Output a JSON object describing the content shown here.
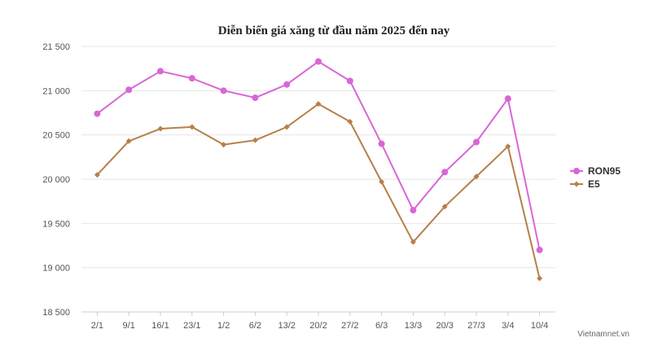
{
  "chart_data": {
    "type": "line",
    "title": "Diễn biến giá xăng từ đầu năm 2025 đến nay",
    "xlabel": "",
    "ylabel": "",
    "categories": [
      "2/1",
      "9/1",
      "16/1",
      "23/1",
      "1/2",
      "6/2",
      "13/2",
      "20/2",
      "27/2",
      "6/3",
      "13/3",
      "20/3",
      "27/3",
      "3/4",
      "10/4"
    ],
    "y_ticks": [
      {
        "value": 18500,
        "label": "18 500"
      },
      {
        "value": 19000,
        "label": "19 000"
      },
      {
        "value": 19500,
        "label": "19 500"
      },
      {
        "value": 20000,
        "label": "20 000"
      },
      {
        "value": 20500,
        "label": "20 500"
      },
      {
        "value": 21000,
        "label": "21 000"
      },
      {
        "value": 21500,
        "label": "21 500"
      }
    ],
    "ylim": [
      18500,
      21500
    ],
    "grid": true,
    "legend_position": "right",
    "series": [
      {
        "name": "RON95",
        "color": "#d966d6",
        "marker": "circle",
        "values": [
          20740,
          21010,
          21220,
          21140,
          21000,
          20920,
          21070,
          21330,
          21110,
          20400,
          19650,
          20080,
          20420,
          20910,
          19200
        ]
      },
      {
        "name": "E5",
        "color": "#b5804a",
        "marker": "diamond",
        "values": [
          20050,
          20430,
          20570,
          20590,
          20390,
          20440,
          20590,
          20850,
          20650,
          19970,
          19290,
          19690,
          20030,
          20370,
          18880
        ]
      }
    ]
  },
  "credit": "Vietnamnet.vn"
}
